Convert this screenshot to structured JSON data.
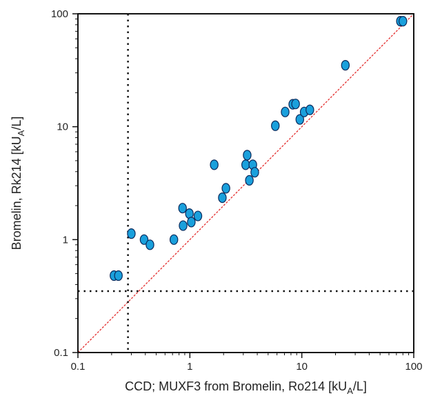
{
  "chart_data": {
    "type": "scatter",
    "xscale": "log",
    "yscale": "log",
    "xlim": [
      0.1,
      100
    ],
    "ylim": [
      0.1,
      100
    ],
    "grid": false,
    "legend": "none",
    "xlabel_main": "CCD; MUXF3 from Bromelin, Ro214 [kU",
    "xlabel_sub": "A",
    "xlabel_end": "/L]",
    "ylabel_main": "Bromelin, Rk214 [kU",
    "ylabel_sub": "A",
    "ylabel_end": "/L]",
    "xticks": [
      {
        "value": 0.1,
        "label": "0.1"
      },
      {
        "value": 1,
        "label": "1"
      },
      {
        "value": 10,
        "label": "10"
      },
      {
        "value": 100,
        "label": "100"
      }
    ],
    "yticks": [
      {
        "value": 0.1,
        "label": "0.1"
      },
      {
        "value": 1,
        "label": "1"
      },
      {
        "value": 10,
        "label": "10"
      },
      {
        "value": 100,
        "label": "100"
      }
    ],
    "reference_lines": {
      "identity_color": "#e32b2b",
      "cutoff_color": "#111111",
      "x_cutoff": 0.28,
      "y_cutoff": 0.35
    },
    "marker_fill": "#1aa0dc",
    "marker_stroke": "#0b2a5c",
    "points": [
      {
        "x": 0.21,
        "y": 0.48
      },
      {
        "x": 0.23,
        "y": 0.48
      },
      {
        "x": 0.3,
        "y": 1.13
      },
      {
        "x": 0.39,
        "y": 1.0
      },
      {
        "x": 0.44,
        "y": 0.9
      },
      {
        "x": 0.72,
        "y": 1.0
      },
      {
        "x": 0.86,
        "y": 1.9
      },
      {
        "x": 0.87,
        "y": 1.33
      },
      {
        "x": 0.99,
        "y": 1.7
      },
      {
        "x": 1.03,
        "y": 1.43
      },
      {
        "x": 1.18,
        "y": 1.62
      },
      {
        "x": 1.65,
        "y": 4.6
      },
      {
        "x": 1.95,
        "y": 2.35
      },
      {
        "x": 2.1,
        "y": 2.85
      },
      {
        "x": 3.15,
        "y": 4.6
      },
      {
        "x": 3.25,
        "y": 5.6
      },
      {
        "x": 3.4,
        "y": 3.35
      },
      {
        "x": 3.65,
        "y": 4.6
      },
      {
        "x": 3.8,
        "y": 3.95
      },
      {
        "x": 5.8,
        "y": 10.2
      },
      {
        "x": 7.1,
        "y": 13.5
      },
      {
        "x": 8.3,
        "y": 15.8
      },
      {
        "x": 8.8,
        "y": 15.9
      },
      {
        "x": 9.6,
        "y": 11.6
      },
      {
        "x": 10.5,
        "y": 13.5
      },
      {
        "x": 11.8,
        "y": 14.1
      },
      {
        "x": 24.5,
        "y": 35.0
      },
      {
        "x": 76.0,
        "y": 86.0
      },
      {
        "x": 80.0,
        "y": 86.0
      }
    ]
  }
}
